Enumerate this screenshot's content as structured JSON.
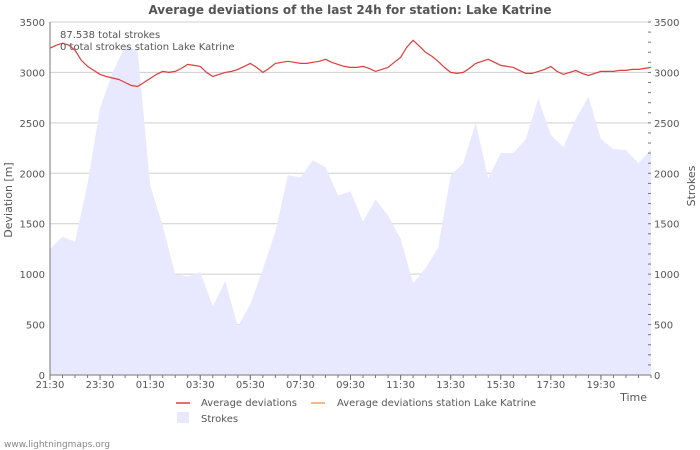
{
  "chart_data": {
    "type": "line",
    "title": "Average deviations of the last 24h for station: Lake Katrine",
    "xlabel": "Time",
    "ylabel_left": "Deviation  [m]",
    "ylabel_right": "Strokes",
    "ylim": [
      0,
      3500
    ],
    "yticks": [
      0,
      500,
      1000,
      1500,
      2000,
      2500,
      3000,
      3500
    ],
    "xrange": [
      0,
      1440
    ],
    "xticks": [
      {
        "label": "21:30",
        "value": 0
      },
      {
        "label": "23:30",
        "value": 120
      },
      {
        "label": "01:30",
        "value": 240
      },
      {
        "label": "03:30",
        "value": 360
      },
      {
        "label": "05:30",
        "value": 480
      },
      {
        "label": "07:30",
        "value": 600
      },
      {
        "label": "09:30",
        "value": 720
      },
      {
        "label": "11:30",
        "value": 840
      },
      {
        "label": "13:30",
        "value": 960
      },
      {
        "label": "15:30",
        "value": 1080
      },
      {
        "label": "17:30",
        "value": 1200
      },
      {
        "label": "19:30",
        "value": 1320
      }
    ],
    "annotations": [
      "87.538 total strokes",
      "0 total strokes station Lake Katrine"
    ],
    "series": [
      {
        "name": "Average deviations",
        "kind": "line",
        "color": "#e03c3c",
        "x": [
          0,
          15,
          30,
          45,
          60,
          75,
          90,
          105,
          120,
          135,
          150,
          165,
          180,
          195,
          210,
          225,
          240,
          255,
          270,
          285,
          300,
          315,
          330,
          345,
          360,
          375,
          390,
          405,
          420,
          435,
          450,
          465,
          480,
          495,
          510,
          525,
          540,
          555,
          570,
          585,
          600,
          615,
          630,
          645,
          660,
          675,
          690,
          705,
          720,
          735,
          750,
          765,
          780,
          795,
          810,
          825,
          840,
          855,
          870,
          885,
          900,
          915,
          930,
          945,
          960,
          975,
          990,
          1005,
          1020,
          1035,
          1050,
          1065,
          1080,
          1095,
          1110,
          1125,
          1140,
          1155,
          1170,
          1185,
          1200,
          1215,
          1230,
          1245,
          1260,
          1275,
          1290,
          1305,
          1320,
          1335,
          1350,
          1365,
          1380,
          1395,
          1410,
          1425,
          1440
        ],
        "values": [
          3240,
          3270,
          3290,
          3270,
          3220,
          3120,
          3060,
          3020,
          2980,
          2960,
          2945,
          2930,
          2900,
          2870,
          2860,
          2900,
          2940,
          2980,
          3010,
          3000,
          3010,
          3040,
          3080,
          3070,
          3060,
          3000,
          2960,
          2980,
          3000,
          3010,
          3030,
          3060,
          3090,
          3050,
          3000,
          3040,
          3090,
          3100,
          3110,
          3100,
          3090,
          3090,
          3100,
          3110,
          3130,
          3100,
          3080,
          3060,
          3050,
          3050,
          3060,
          3040,
          3010,
          3030,
          3050,
          3100,
          3150,
          3250,
          3320,
          3260,
          3200,
          3160,
          3110,
          3050,
          3000,
          2990,
          3000,
          3040,
          3090,
          3110,
          3130,
          3100,
          3070,
          3060,
          3050,
          3020,
          2990,
          2990,
          3010,
          3030,
          3060,
          3010,
          2980,
          3000,
          3020,
          2990,
          2970,
          2990,
          3010,
          3010,
          3010,
          3020,
          3020,
          3030,
          3030,
          3040,
          3050
        ]
      },
      {
        "name": "Average deviations station Lake Katrine",
        "kind": "line",
        "color": "#f0a060",
        "x": [],
        "values": []
      },
      {
        "name": "Strokes",
        "kind": "area",
        "color": "#e8e8ff",
        "x": [
          0,
          30,
          60,
          90,
          120,
          150,
          180,
          210,
          240,
          270,
          300,
          330,
          360,
          390,
          420,
          450,
          480,
          510,
          540,
          570,
          600,
          630,
          660,
          690,
          720,
          750,
          780,
          810,
          840,
          870,
          900,
          930,
          960,
          990,
          1020,
          1050,
          1080,
          1110,
          1140,
          1170,
          1200,
          1230,
          1260,
          1290,
          1320,
          1350,
          1380,
          1410,
          1440
        ],
        "values": [
          1250,
          1370,
          1320,
          1900,
          2650,
          3000,
          3260,
          3220,
          1880,
          1480,
          1000,
          980,
          1020,
          680,
          930,
          480,
          700,
          1050,
          1420,
          1980,
          1960,
          2130,
          2060,
          1780,
          1820,
          1520,
          1740,
          1580,
          1350,
          910,
          1060,
          1260,
          1980,
          2100,
          2500,
          1950,
          2200,
          2200,
          2340,
          2740,
          2380,
          2260,
          2540,
          2760,
          2340,
          2240,
          2230,
          2100,
          2240
        ]
      }
    ],
    "legend": {
      "placement": "bottom",
      "items": [
        "Average deviations",
        "Average deviations station Lake Katrine",
        "Strokes"
      ]
    }
  },
  "footer": {
    "credit": "www.lightningmaps.org"
  }
}
